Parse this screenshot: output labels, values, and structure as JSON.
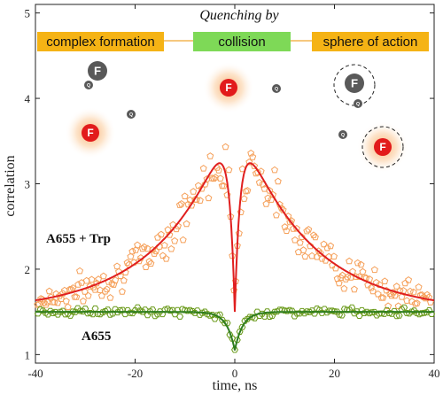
{
  "chart_data": {
    "type": "scatter",
    "xlabel": "time, ns",
    "ylabel": "correlation",
    "xlim": [
      -40,
      40
    ],
    "ylim": [
      0.9,
      5.1
    ],
    "xticks": [
      -40,
      -20,
      0,
      20,
      40
    ],
    "yticks": [
      1,
      2,
      3,
      4,
      5
    ],
    "grid": false,
    "colors": {
      "trp_points": "#f5a05a",
      "trp_fit": "#e01f1f",
      "a655_points": "#6a9a1a",
      "a655_fit": "#2e7d1e",
      "box_orange": "#f5b315",
      "box_green": "#7ed957",
      "dye": "#e21b1b",
      "quencher": "#595959"
    },
    "series": [
      {
        "name": "A655 + Trp",
        "model": "double-exponential bunching with central antibunching dip",
        "fit_points": [
          {
            "x": -40,
            "y": 1.55
          },
          {
            "x": -30,
            "y": 1.76
          },
          {
            "x": -20,
            "y": 2.19
          },
          {
            "x": -10,
            "y": 2.86
          },
          {
            "x": -5,
            "y": 3.23
          },
          {
            "x": -3,
            "y": 3.26
          },
          {
            "x": -1.5,
            "y": 2.8
          },
          {
            "x": 0,
            "y": 1.2
          },
          {
            "x": 1.5,
            "y": 2.8
          },
          {
            "x": 3,
            "y": 3.26
          },
          {
            "x": 5,
            "y": 3.23
          },
          {
            "x": 10,
            "y": 2.86
          },
          {
            "x": 20,
            "y": 2.19
          },
          {
            "x": 30,
            "y": 1.76
          },
          {
            "x": 40,
            "y": 1.55
          }
        ]
      },
      {
        "name": "A655",
        "model": "flat baseline with central antibunching dip",
        "fit_points": [
          {
            "x": -40,
            "y": 1.5
          },
          {
            "x": -10,
            "y": 1.5
          },
          {
            "x": -4,
            "y": 1.46
          },
          {
            "x": -2,
            "y": 1.35
          },
          {
            "x": 0,
            "y": 1.05
          },
          {
            "x": 2,
            "y": 1.35
          },
          {
            "x": 4,
            "y": 1.46
          },
          {
            "x": 10,
            "y": 1.5
          },
          {
            "x": 40,
            "y": 1.5
          }
        ]
      }
    ]
  },
  "annotation": {
    "title": "Quenching by",
    "boxes": [
      {
        "label": "complex formation"
      },
      {
        "label": "collision"
      },
      {
        "label": "sphere of action"
      }
    ],
    "dye_label": "F",
    "quencher_label": "Q"
  }
}
